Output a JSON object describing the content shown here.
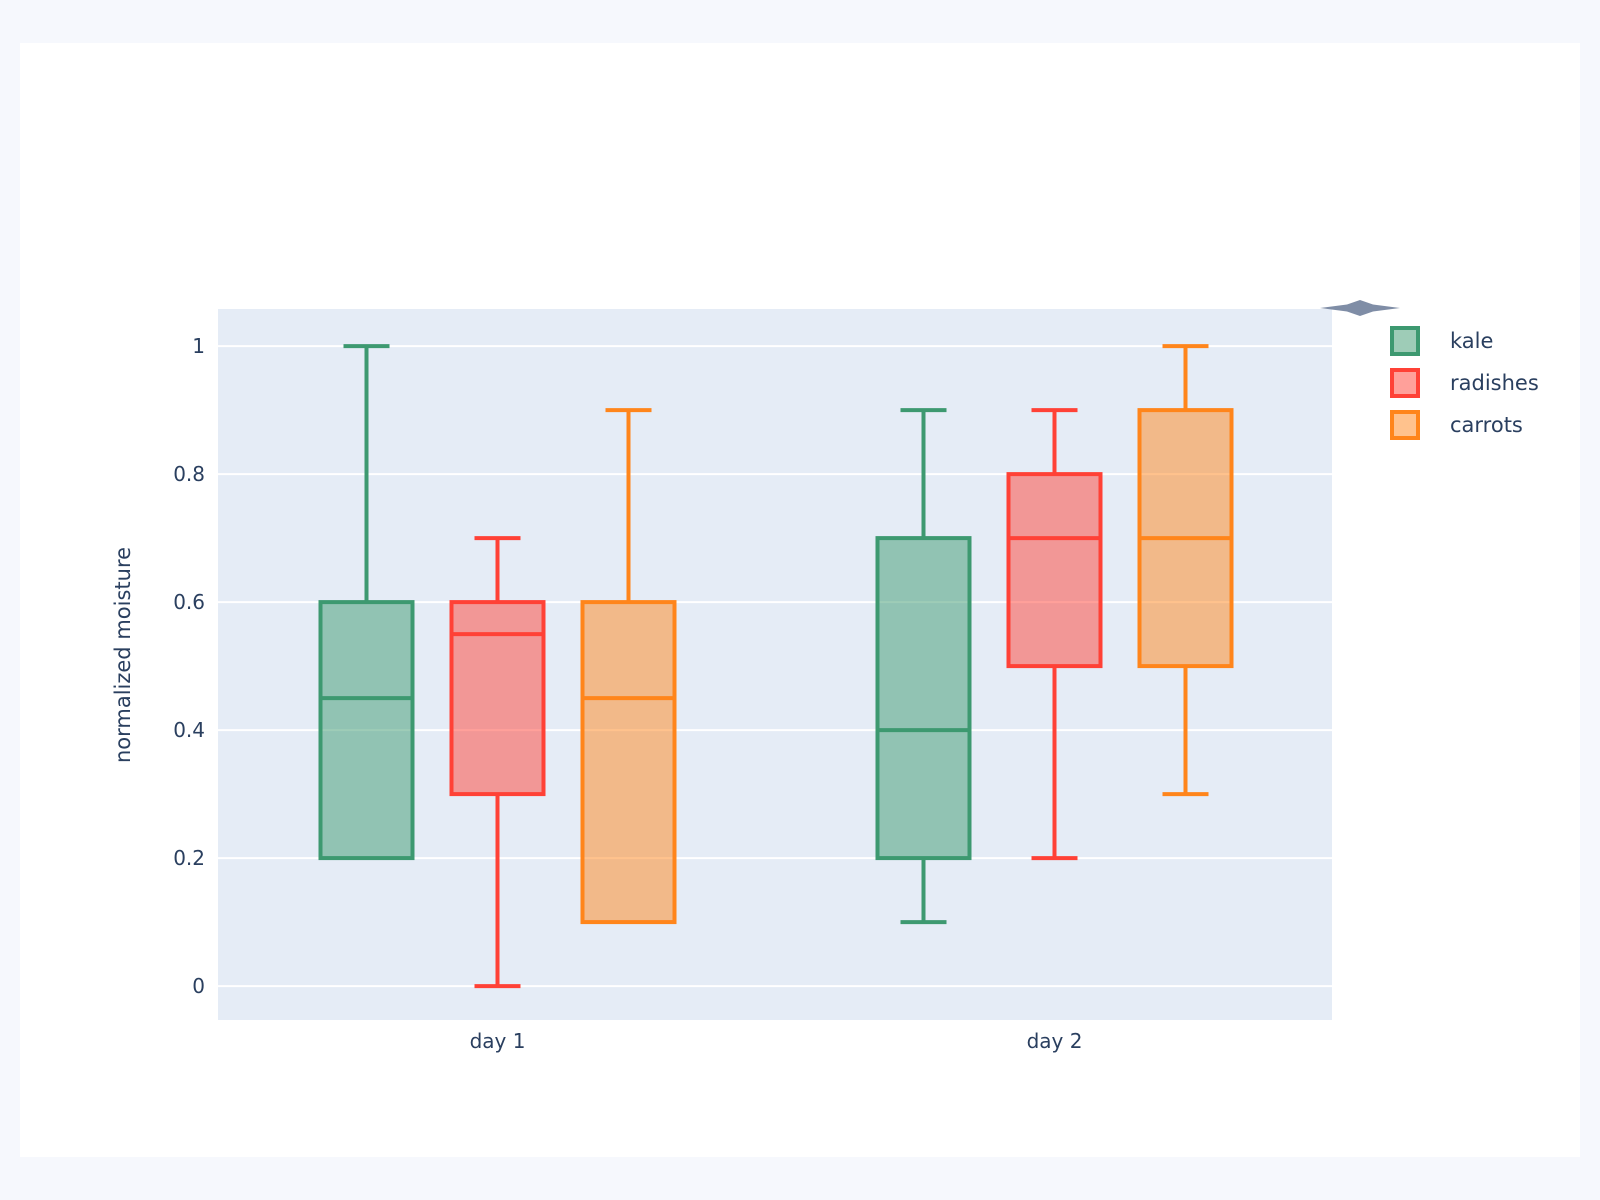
{
  "page": {
    "background": "#f6f8fd",
    "card_background": "#ffffff"
  },
  "chart_data": {
    "type": "box",
    "title": "",
    "xlabel": "",
    "ylabel": "normalized moisture",
    "categories": [
      "day 1",
      "day 2"
    ],
    "yticks": {
      "values": [
        0,
        0.2,
        0.4,
        0.6,
        0.8,
        1
      ],
      "labels": [
        "0",
        "0.2",
        "0.4",
        "0.6",
        "0.8",
        "1"
      ]
    },
    "ylim": [
      -0.053,
      1.058
    ],
    "grid": true,
    "legend_position": "outside-top-right",
    "colors": {
      "plot_background": "#e5ecf6",
      "gridline": "#ffffff",
      "text": "#2a3f5f",
      "cursor_spindle": "#7f8da6"
    },
    "series": [
      {
        "name": "kale",
        "color": "#3D9970",
        "fill_opacity": 0.5,
        "boxes": [
          {
            "category": "day 1",
            "whisker_low": 0.2,
            "q1": 0.2,
            "median": 0.45,
            "q3": 0.6,
            "whisker_high": 1.0
          },
          {
            "category": "day 2",
            "whisker_low": 0.1,
            "q1": 0.2,
            "median": 0.4,
            "q3": 0.7,
            "whisker_high": 0.9
          }
        ]
      },
      {
        "name": "radishes",
        "color": "#FF4136",
        "fill_opacity": 0.5,
        "boxes": [
          {
            "category": "day 1",
            "whisker_low": 0.0,
            "q1": 0.3,
            "median": 0.55,
            "q3": 0.6,
            "whisker_high": 0.7
          },
          {
            "category": "day 2",
            "whisker_low": 0.2,
            "q1": 0.5,
            "median": 0.7,
            "q3": 0.8,
            "whisker_high": 0.9
          }
        ]
      },
      {
        "name": "carrots",
        "color": "#FF851B",
        "fill_opacity": 0.5,
        "boxes": [
          {
            "category": "day 1",
            "whisker_low": 0.1,
            "q1": 0.1,
            "median": 0.45,
            "q3": 0.6,
            "whisker_high": 0.9
          },
          {
            "category": "day 2",
            "whisker_low": 0.3,
            "q1": 0.5,
            "median": 0.7,
            "q3": 0.9,
            "whisker_high": 1.0
          }
        ]
      }
    ]
  }
}
